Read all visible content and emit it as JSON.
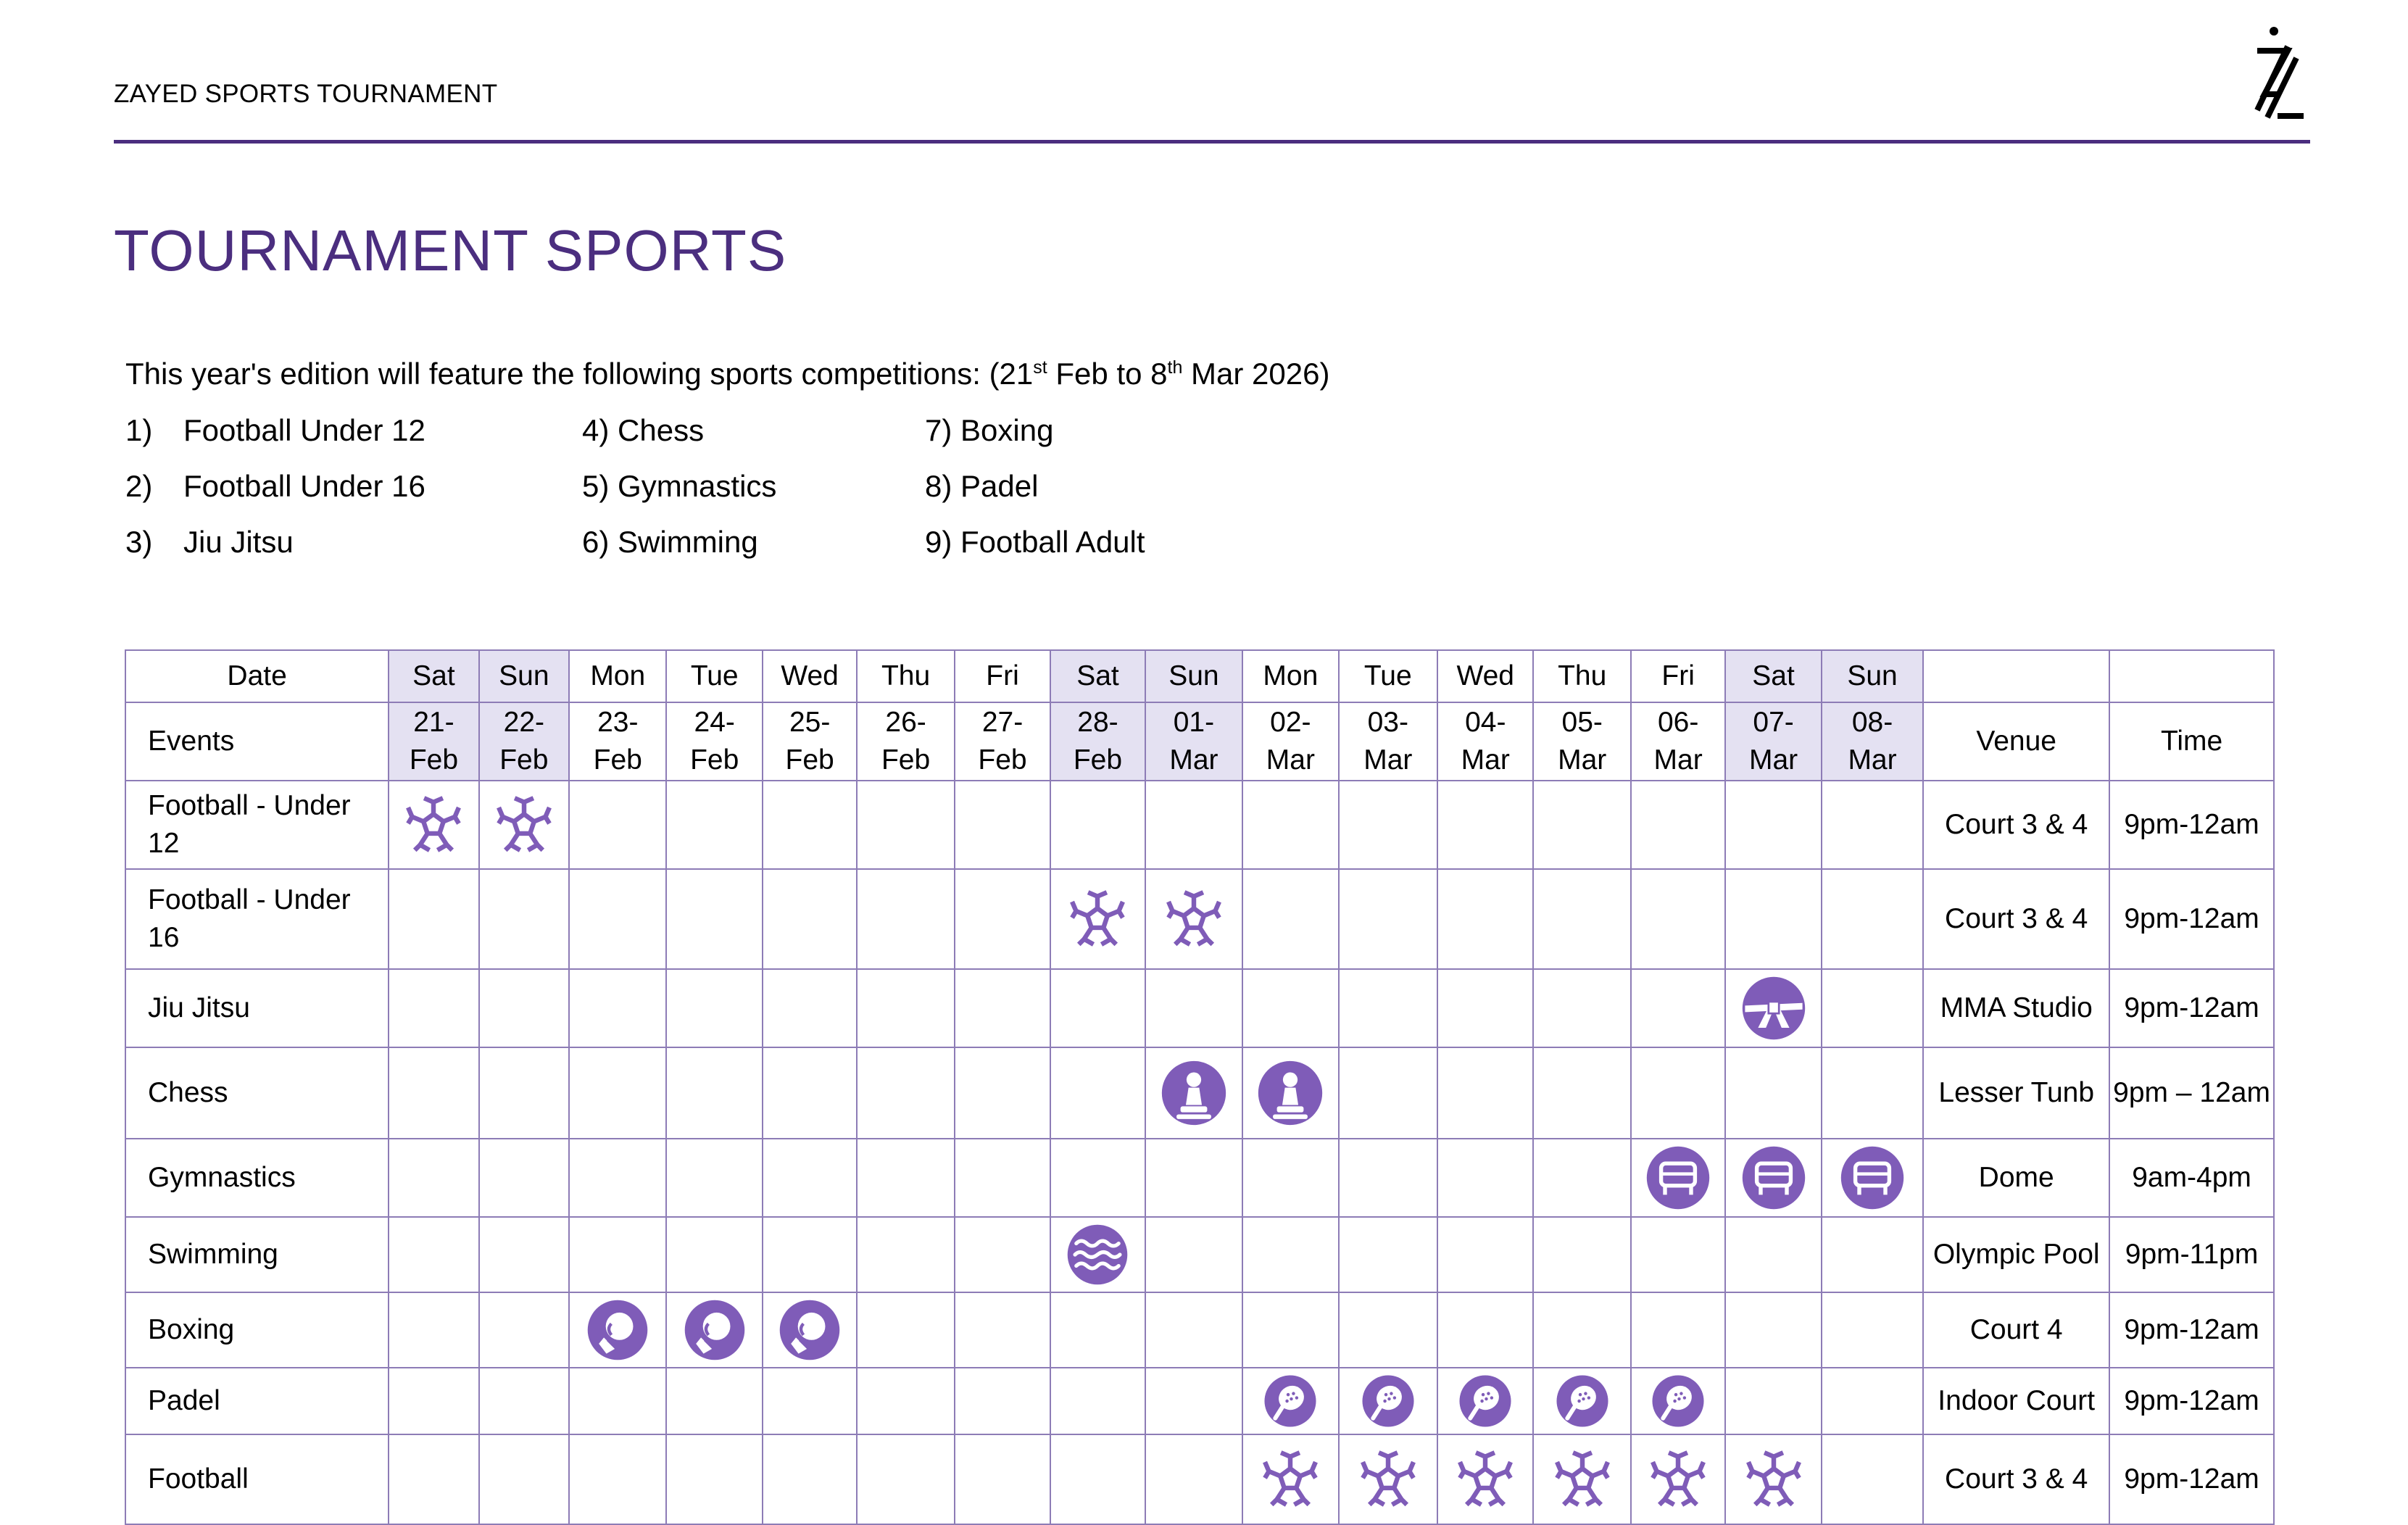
{
  "header": {
    "organization": "ZAYED SPORTS TOURNAMENT"
  },
  "page_title": "TOURNAMENT SPORTS",
  "intro": {
    "text_before": "This year's edition will feature the following sports competitions: (21",
    "sup1": "st",
    "text_mid": " Feb to 8",
    "sup2": "th",
    "text_after": " Mar 2026)"
  },
  "sports_list": [
    {
      "num": "1)",
      "name": "Football Under 12"
    },
    {
      "num": "2)",
      "name": "Football Under 16"
    },
    {
      "num": "3)",
      "name": "Jiu Jitsu"
    },
    {
      "num": "4)",
      "name": "Chess"
    },
    {
      "num": "5)",
      "name": "Gymnastics"
    },
    {
      "num": "6)",
      "name": "Swimming"
    },
    {
      "num": "7)",
      "name": "Boxing"
    },
    {
      "num": "8)",
      "name": "Padel"
    },
    {
      "num": "9)",
      "name": "Football Adult"
    }
  ],
  "schedule": {
    "date_header": "Date",
    "events_header": "Events",
    "venue_header": "Venue",
    "time_header": "Time",
    "highlight_color": "#e4e1f2",
    "icon_color": "#7f5cb8",
    "days": [
      {
        "dow": "Sat",
        "date": "21-",
        "month": "Feb",
        "weekend": true
      },
      {
        "dow": "Sun",
        "date": "22-",
        "month": "Feb",
        "weekend": true
      },
      {
        "dow": "Mon",
        "date": "23-",
        "month": "Feb",
        "weekend": false
      },
      {
        "dow": "Tue",
        "date": "24-",
        "month": "Feb",
        "weekend": false
      },
      {
        "dow": "Wed",
        "date": "25-",
        "month": "Feb",
        "weekend": false
      },
      {
        "dow": "Thu",
        "date": "26-",
        "month": "Feb",
        "weekend": false
      },
      {
        "dow": "Fri",
        "date": "27-",
        "month": "Feb",
        "weekend": false
      },
      {
        "dow": "Sat",
        "date": "28-",
        "month": "Feb",
        "weekend": true
      },
      {
        "dow": "Sun",
        "date": "01-",
        "month": "Mar",
        "weekend": true
      },
      {
        "dow": "Mon",
        "date": "02-",
        "month": "Mar",
        "weekend": false
      },
      {
        "dow": "Tue",
        "date": "03-",
        "month": "Mar",
        "weekend": false
      },
      {
        "dow": "Wed",
        "date": "04-",
        "month": "Mar",
        "weekend": false
      },
      {
        "dow": "Thu",
        "date": "05-",
        "month": "Mar",
        "weekend": false
      },
      {
        "dow": "Fri",
        "date": "06-",
        "month": "Mar",
        "weekend": false
      },
      {
        "dow": "Sat",
        "date": "07-",
        "month": "Mar",
        "weekend": true
      },
      {
        "dow": "Sun",
        "date": "08-",
        "month": "Mar",
        "weekend": true
      }
    ],
    "events": [
      {
        "name": "Football - Under 12",
        "icon": "football-icon",
        "days": [
          0,
          1
        ],
        "venue": "Court 3 & 4",
        "time": "9pm-12am"
      },
      {
        "name": "Football - Under 16",
        "icon": "football-icon",
        "days": [
          7,
          8
        ],
        "venue": "Court 3 & 4",
        "time": "9pm-12am"
      },
      {
        "name": "Jiu Jitsu",
        "icon": "jiu-jitsu-belt-icon",
        "days": [
          14
        ],
        "venue": "MMA Studio",
        "time": "9pm-12am"
      },
      {
        "name": "Chess",
        "icon": "chess-pawn-icon",
        "days": [
          8,
          9
        ],
        "venue": "Lesser Tunb",
        "time": "9pm – 12am"
      },
      {
        "name": "Gymnastics",
        "icon": "gymnastics-vault-icon",
        "days": [
          13,
          14,
          15
        ],
        "venue": "Dome",
        "time": "9am-4pm"
      },
      {
        "name": "Swimming",
        "icon": "swimming-waves-icon",
        "days": [
          7
        ],
        "venue": "Olympic Pool",
        "time": "9pm-11pm"
      },
      {
        "name": "Boxing",
        "icon": "boxing-glove-icon",
        "days": [
          2,
          3,
          4
        ],
        "venue": "Court 4",
        "time": "9pm-12am"
      },
      {
        "name": "Padel",
        "icon": "padel-racket-icon",
        "days": [
          9,
          10,
          11,
          12,
          13
        ],
        "venue": "Indoor Court",
        "time": "9pm-12am"
      },
      {
        "name": "Football",
        "icon": "football-icon",
        "days": [
          9,
          10,
          11,
          12,
          13,
          14
        ],
        "venue": "Court 3 & 4",
        "time": "9pm-12am"
      }
    ]
  }
}
